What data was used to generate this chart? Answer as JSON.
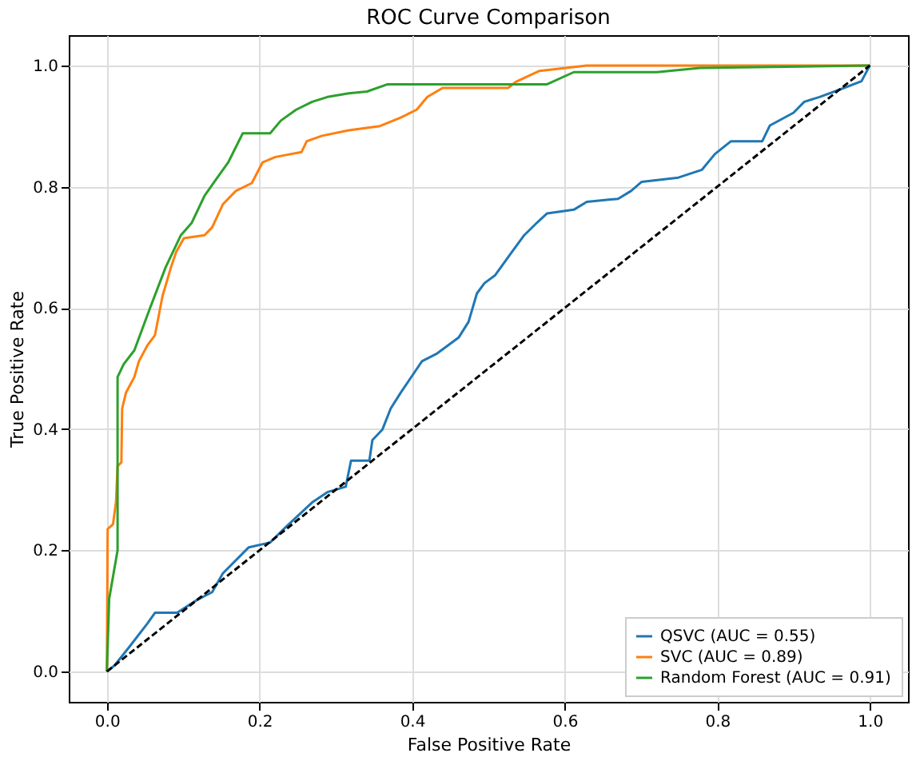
{
  "chart_data": {
    "type": "line",
    "title": "ROC Curve Comparison",
    "xlabel": "False Positive Rate",
    "ylabel": "True Positive Rate",
    "xlim": [
      -0.05,
      1.05
    ],
    "ylim": [
      -0.05,
      1.05
    ],
    "xticks": [
      {
        "value": 0,
        "label": "0.0"
      },
      0.2,
      0.4,
      0.6,
      0.8,
      {
        "value": 1,
        "label": "1.0"
      }
    ],
    "yticks": [
      {
        "value": 0,
        "label": "0.0"
      },
      0.2,
      0.4,
      0.6,
      0.8,
      {
        "value": 1,
        "label": "1.0"
      }
    ],
    "grid": true,
    "legend": "bottom right",
    "marker": "none",
    "series": [
      {
        "name": "QSVC (AUC = 0.55)",
        "color": "#1f77b4",
        "line_style": "solid",
        "x": [
          0,
          0.01,
          0.029,
          0.053,
          0.063,
          0.092,
          0.118,
          0.138,
          0.152,
          0.186,
          0.214,
          0.235,
          0.269,
          0.289,
          0.313,
          0.32,
          0.344,
          0.348,
          0.361,
          0.372,
          0.385,
          0.406,
          0.413,
          0.433,
          0.461,
          0.474,
          0.485,
          0.495,
          0.509,
          0.529,
          0.547,
          0.564,
          0.577,
          0.612,
          0.629,
          0.67,
          0.687,
          0.701,
          0.749,
          0.78,
          0.797,
          0.818,
          0.859,
          0.869,
          0.9,
          0.914,
          0.934,
          0.962,
          0.989,
          1.0
        ],
        "values": [
          0,
          0.01,
          0.04,
          0.079,
          0.097,
          0.097,
          0.118,
          0.131,
          0.162,
          0.205,
          0.213,
          0.239,
          0.279,
          0.296,
          0.305,
          0.348,
          0.348,
          0.382,
          0.399,
          0.434,
          0.46,
          0.499,
          0.512,
          0.525,
          0.551,
          0.577,
          0.624,
          0.641,
          0.654,
          0.689,
          0.72,
          0.741,
          0.756,
          0.762,
          0.775,
          0.78,
          0.793,
          0.808,
          0.815,
          0.828,
          0.854,
          0.875,
          0.875,
          0.901,
          0.922,
          0.94,
          0.948,
          0.961,
          0.974,
          1.0
        ]
      },
      {
        "name": "SVC (AUC = 0.89)",
        "color": "#ff7f0e",
        "line_style": "solid",
        "x": [
          0,
          0.001,
          0.008,
          0.012,
          0.014,
          0.019,
          0.02,
          0.025,
          0.036,
          0.042,
          0.053,
          0.063,
          0.073,
          0.084,
          0.091,
          0.101,
          0.128,
          0.138,
          0.152,
          0.169,
          0.19,
          0.204,
          0.221,
          0.255,
          0.262,
          0.282,
          0.317,
          0.358,
          0.385,
          0.406,
          0.42,
          0.44,
          0.526,
          0.536,
          0.567,
          0.629,
          1.0
        ],
        "values": [
          0,
          0.235,
          0.243,
          0.28,
          0.339,
          0.345,
          0.434,
          0.46,
          0.486,
          0.512,
          0.538,
          0.555,
          0.62,
          0.667,
          0.693,
          0.715,
          0.72,
          0.733,
          0.771,
          0.793,
          0.806,
          0.84,
          0.849,
          0.857,
          0.875,
          0.884,
          0.893,
          0.9,
          0.914,
          0.927,
          0.948,
          0.963,
          0.963,
          0.973,
          0.991,
          1.0,
          1.0
        ]
      },
      {
        "name": "Random Forest (AUC = 0.91)",
        "color": "#2ca02c",
        "line_style": "solid",
        "x": [
          0,
          0.003,
          0.014,
          0.014,
          0.022,
          0.036,
          0.056,
          0.077,
          0.097,
          0.111,
          0.128,
          0.142,
          0.159,
          0.178,
          0.214,
          0.228,
          0.248,
          0.269,
          0.289,
          0.317,
          0.341,
          0.368,
          0.577,
          0.612,
          0.721,
          0.777,
          1.0
        ],
        "values": [
          0,
          0.12,
          0.2,
          0.486,
          0.507,
          0.53,
          0.598,
          0.667,
          0.72,
          0.74,
          0.785,
          0.81,
          0.84,
          0.888,
          0.888,
          0.909,
          0.927,
          0.94,
          0.948,
          0.954,
          0.957,
          0.969,
          0.969,
          0.989,
          0.989,
          0.996,
          1.0
        ]
      },
      {
        "color": "#000000",
        "line_style": "dashed",
        "x": [
          0,
          1
        ],
        "values": [
          0,
          1
        ]
      }
    ]
  }
}
